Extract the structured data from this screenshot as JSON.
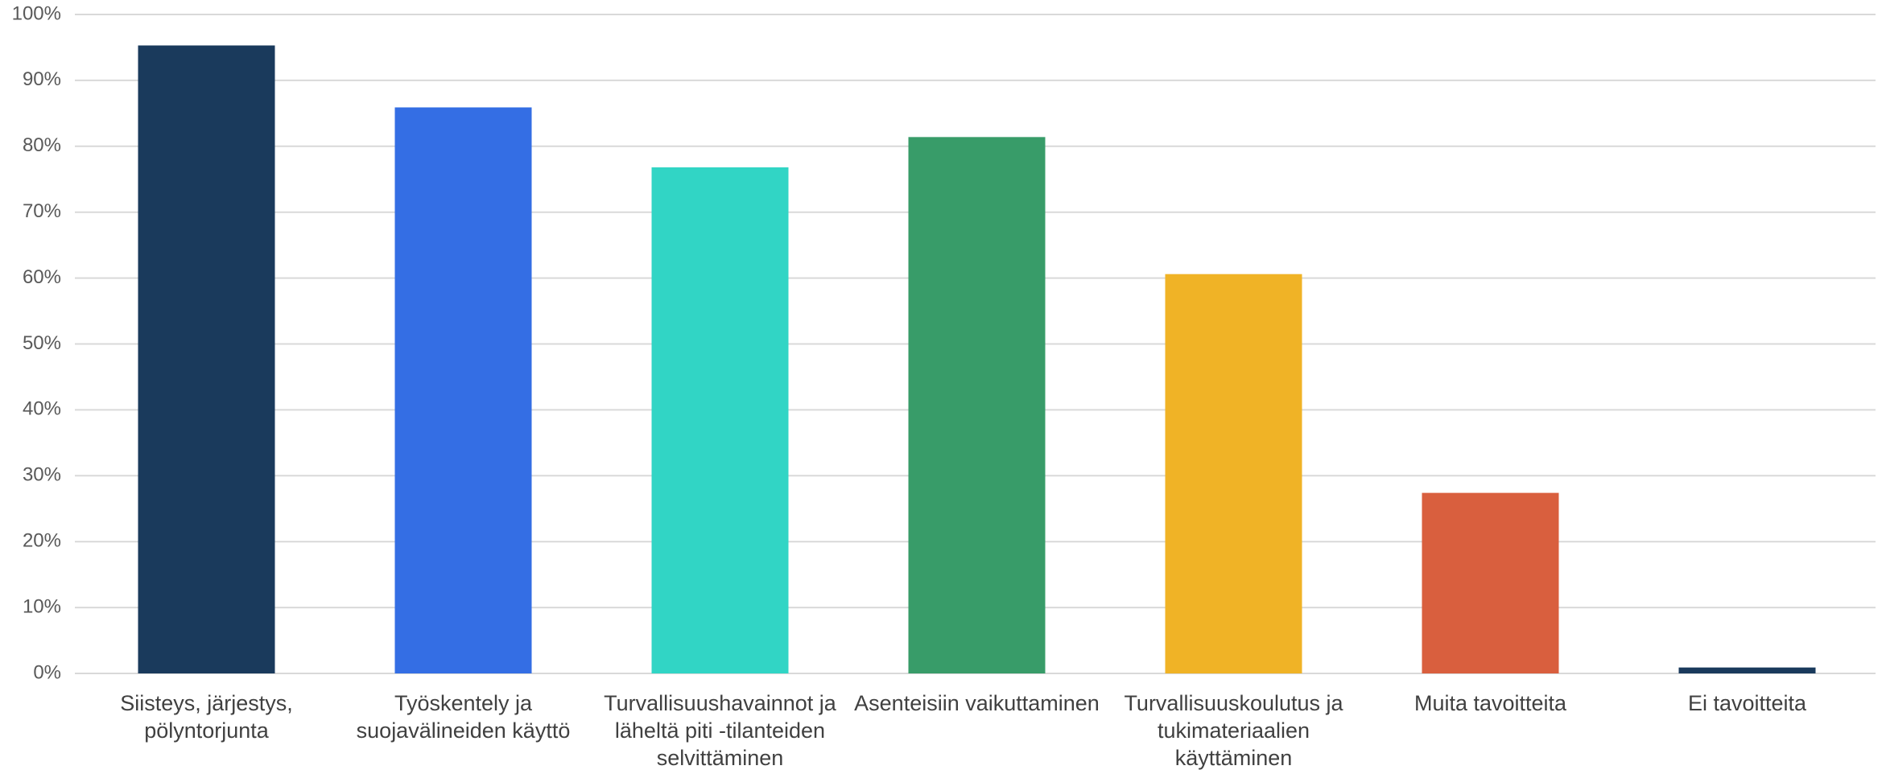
{
  "chart_data": {
    "type": "bar",
    "categories": [
      "Siisteys, järjestys, pölyntorjunta",
      "Työskentely ja suojavälineiden käyttö",
      "Turvallisuushavainnot ja läheltä piti -tilanteiden selvittäminen",
      "Asenteisiin vaikuttaminen",
      "Turvallisuuskoulutus ja tukimateriaalien käyttäminen",
      "Muita tavoitteita",
      "Ei tavoitteita"
    ],
    "values": [
      95.3,
      85.9,
      76.8,
      81.4,
      60.6,
      27.4,
      0.9
    ],
    "colors": [
      "#1a3a5c",
      "#346ee4",
      "#31d5c5",
      "#389c69",
      "#f0b326",
      "#d95f3e",
      "#1a3a5c"
    ],
    "ylim": [
      0,
      100
    ],
    "yticks": [
      {
        "value": 0,
        "label": "0%"
      },
      {
        "value": 10,
        "label": "10%"
      },
      {
        "value": 20,
        "label": "20%"
      },
      {
        "value": 30,
        "label": "30%"
      },
      {
        "value": 40,
        "label": "40%"
      },
      {
        "value": 50,
        "label": "50%"
      },
      {
        "value": 60,
        "label": "60%"
      },
      {
        "value": 70,
        "label": "70%"
      },
      {
        "value": 80,
        "label": "80%"
      },
      {
        "value": 90,
        "label": "90%"
      },
      {
        "value": 100,
        "label": "100%"
      }
    ],
    "grid": true
  }
}
